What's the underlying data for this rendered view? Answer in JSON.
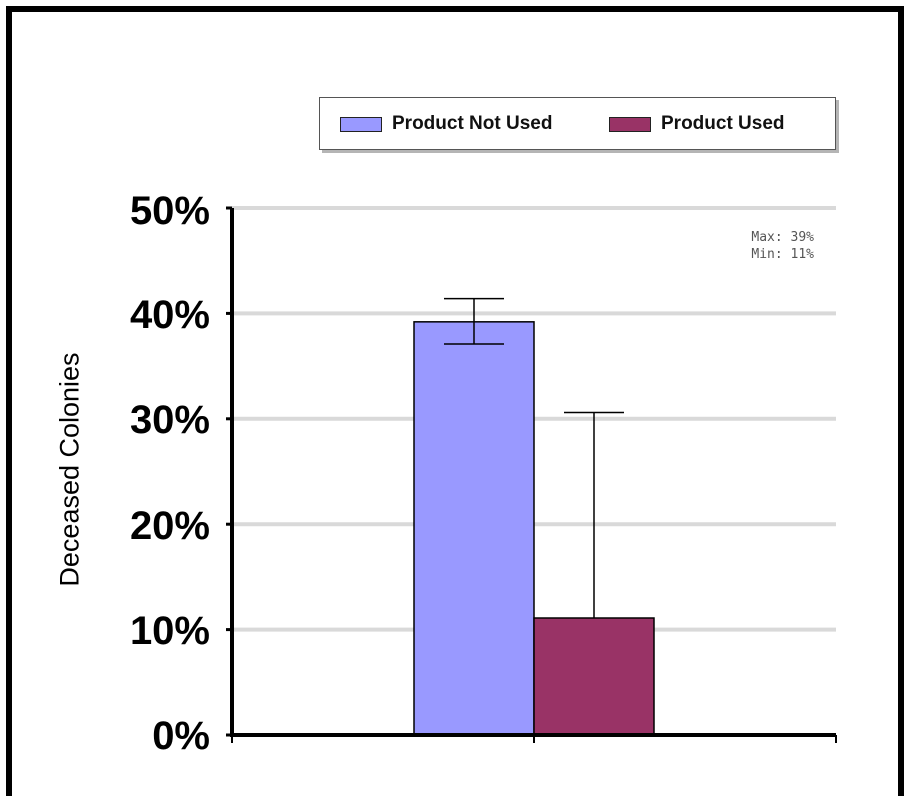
{
  "chart_data": {
    "type": "bar",
    "categories": [
      ""
    ],
    "series": [
      {
        "name": "Product Not Used",
        "values": [
          39.2
        ],
        "error_low": [
          37.1
        ],
        "error_high": [
          41.4
        ],
        "color": "#9999ff"
      },
      {
        "name": "Product Used",
        "values": [
          11.1
        ],
        "error_low": [
          11.1
        ],
        "error_high": [
          30.6
        ],
        "color": "#993366"
      }
    ],
    "ylabel": "Deceased Colonies",
    "xlabel": "",
    "ylim": [
      0,
      50
    ],
    "yticks": [
      "0%",
      "10%",
      "20%",
      "30%",
      "40%",
      "50%"
    ],
    "grid": true,
    "legend_position": "top",
    "annotations": [
      "Max: 39%",
      "Min: 11%"
    ]
  }
}
